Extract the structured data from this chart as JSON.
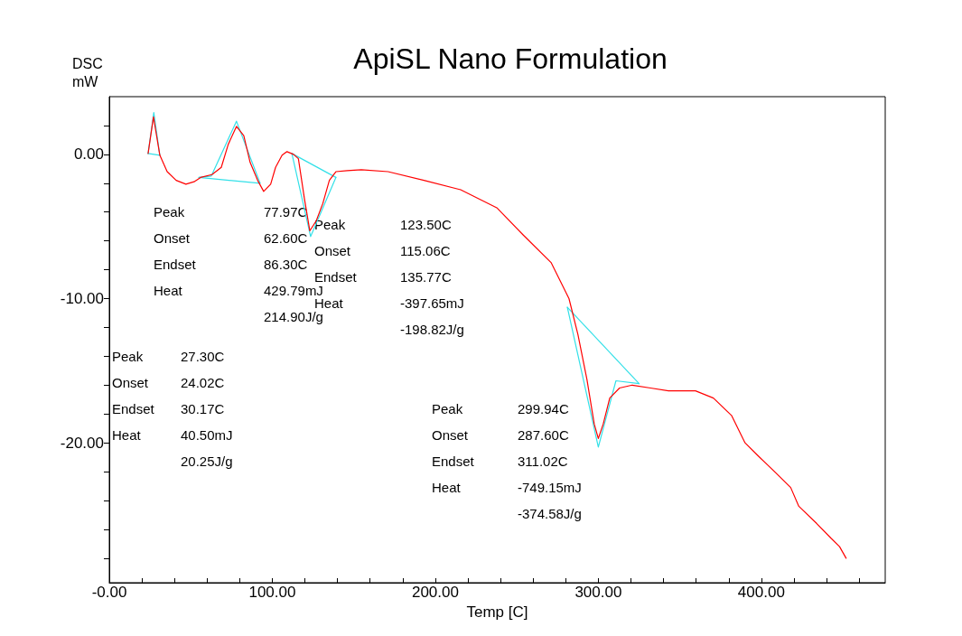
{
  "chart_data": {
    "type": "line",
    "title": "ApiSL Nano Formulation",
    "xlabel": "Temp [C]",
    "ylabel": "DSC\nmW",
    "xlim": [
      0,
      476
    ],
    "ylim": [
      -29.7,
      4.0
    ],
    "xticks": [
      {
        "value": 0,
        "label": "-0.00"
      },
      {
        "value": 20,
        "label": null
      },
      {
        "value": 40,
        "label": null
      },
      {
        "value": 60,
        "label": null
      },
      {
        "value": 80,
        "label": null
      },
      {
        "value": 100,
        "label": "100.00"
      },
      {
        "value": 120,
        "label": null
      },
      {
        "value": 140,
        "label": null
      },
      {
        "value": 160,
        "label": null
      },
      {
        "value": 180,
        "label": null
      },
      {
        "value": 200,
        "label": "200.00"
      },
      {
        "value": 220,
        "label": null
      },
      {
        "value": 240,
        "label": null
      },
      {
        "value": 260,
        "label": null
      },
      {
        "value": 280,
        "label": null
      },
      {
        "value": 300,
        "label": "300.00"
      },
      {
        "value": 320,
        "label": null
      },
      {
        "value": 340,
        "label": null
      },
      {
        "value": 360,
        "label": null
      },
      {
        "value": 380,
        "label": null
      },
      {
        "value": 400,
        "label": "400.00"
      },
      {
        "value": 420,
        "label": null
      },
      {
        "value": 440,
        "label": null
      },
      {
        "value": 460,
        "label": null
      }
    ],
    "yticks": [
      {
        "value": 2,
        "label": null
      },
      {
        "value": 0,
        "label": "0.00"
      },
      {
        "value": -2,
        "label": null
      },
      {
        "value": -4,
        "label": null
      },
      {
        "value": -6,
        "label": null
      },
      {
        "value": -8,
        "label": null
      },
      {
        "value": -10,
        "label": "-10.00"
      },
      {
        "value": -12,
        "label": null
      },
      {
        "value": -14,
        "label": null
      },
      {
        "value": -16,
        "label": null
      },
      {
        "value": -18,
        "label": null
      },
      {
        "value": -20,
        "label": "-20.00"
      },
      {
        "value": -22,
        "label": null
      },
      {
        "value": -24,
        "label": null
      },
      {
        "value": -26,
        "label": null
      },
      {
        "value": -28,
        "label": null
      }
    ],
    "grid": false,
    "marker": "none",
    "line_style": "solid",
    "series": [
      {
        "color": "#ff0000",
        "x": [
          23.8,
          27.1,
          31,
          35.5,
          41,
          47,
          52,
          56,
          63,
          68.7,
          73,
          78,
          82.5,
          86.4,
          91,
          94.7,
          99,
          102,
          106,
          109,
          113,
          116,
          119.7,
          123,
          127,
          131,
          135,
          139,
          146,
          154.6,
          171,
          193,
          215.5,
          237.7,
          254,
          271,
          282,
          287.5,
          293,
          297.5,
          300,
          303,
          307,
          313,
          320.8,
          332,
          343,
          359.6,
          370.6,
          381.7,
          390,
          398,
          409,
          418,
          423,
          434,
          442.6,
          448,
          452
        ],
        "values": [
          0.06,
          2.6,
          -0.06,
          -1.2,
          -1.8,
          -2.07,
          -1.9,
          -1.6,
          -1.4,
          -0.9,
          0.7,
          1.94,
          1.3,
          -0.56,
          -1.8,
          -2.57,
          -2.07,
          -0.9,
          -0.06,
          0.19,
          0,
          -0.3,
          -3.07,
          -5.3,
          -4.6,
          -3.4,
          -1.8,
          -1.2,
          -1.13,
          -1.07,
          -1.2,
          -1.8,
          -2.45,
          -3.7,
          -5.6,
          -7.5,
          -10,
          -12.5,
          -15.6,
          -18.7,
          -19.7,
          -18.7,
          -16.9,
          -16.2,
          -16.0,
          -16.2,
          -16.4,
          -16.4,
          -16.9,
          -18.1,
          -20,
          -20.9,
          -22.1,
          -23.1,
          -24.4,
          -25.6,
          -26.6,
          -27.2,
          -28.0
        ]
      },
      {
        "color": "#33e0e8",
        "x": [
          23.8,
          27.3,
          31.0
        ],
        "values": [
          0.06,
          2.9,
          -0.06
        ]
      },
      {
        "color": "#33e0e8",
        "x": [
          23.8,
          31.0
        ],
        "values": [
          0.06,
          -0.06
        ]
      },
      {
        "color": "#33e0e8",
        "x": [
          55,
          62.6,
          78,
          92.5
        ],
        "values": [
          -1.6,
          -1.5,
          2.3,
          -2.0
        ]
      },
      {
        "color": "#33e0e8",
        "x": [
          55,
          92.5
        ],
        "values": [
          -1.6,
          -2.0
        ]
      },
      {
        "color": "#33e0e8",
        "x": [
          112,
          123.5,
          139
        ],
        "values": [
          0.06,
          -5.7,
          -1.6
        ]
      },
      {
        "color": "#33e0e8",
        "x": [
          112,
          139
        ],
        "values": [
          0.06,
          -1.6
        ]
      },
      {
        "color": "#33e0e8",
        "x": [
          281,
          300,
          310.8,
          325
        ],
        "values": [
          -10.6,
          -20.3,
          -15.7,
          -15.9
        ]
      },
      {
        "color": "#33e0e8",
        "x": [
          281,
          325
        ],
        "values": [
          -10.6,
          -15.9
        ]
      }
    ],
    "annotations": [
      "Peak\nOnset\nEndset\nHeat",
      "77.97C\n62.60C\n86.30C\n429.79mJ\n214.90J/g",
      "Peak\nOnset\nEndset\nHeat",
      "123.50C\n115.06C\n135.77C\n-397.65mJ\n-198.82J/g",
      "Peak\nOnset\nEndset\nHeat",
      "27.30C\n24.02C\n30.17C\n40.50mJ\n20.25J/g",
      "Peak\nOnset\nEndset\nHeat",
      "299.94C\n287.60C\n311.02C\n-749.15mJ\n-374.58J/g"
    ]
  }
}
